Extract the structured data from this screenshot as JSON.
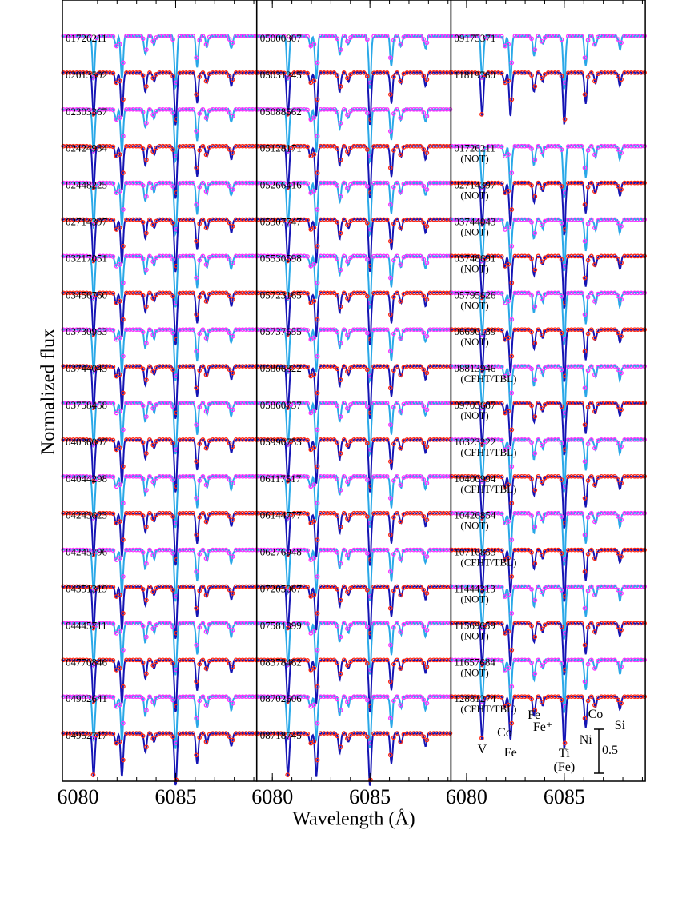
{
  "chart_data": {
    "type": "spectra",
    "xlabel": "Wavelength (Å)",
    "ylabel": "Normalized flux",
    "xlim": [
      6079.2,
      6089.15
    ],
    "xticks": [
      6080,
      6085
    ],
    "xminorticks": [
      6080,
      6081,
      6082,
      6083,
      6084,
      6085,
      6086,
      6087,
      6088,
      6089
    ],
    "colors": [
      [
        "#29a8e8",
        "#ff33ff"
      ],
      [
        "#1414b4",
        "#ff2a14"
      ]
    ],
    "scale_bar": 0.5,
    "lines": [
      {
        "label": "V",
        "wavelength": 6080.8,
        "depth": 0.5
      },
      {
        "label": "Co",
        "wavelength": 6081.95,
        "depth": 0.12
      },
      {
        "label": "Fe",
        "wavelength": 6082.25,
        "depth": 0.5
      },
      {
        "label": "Fe",
        "wavelength": 6083.45,
        "depth": 0.22
      },
      {
        "label": "Fe⁺",
        "wavelength": 6083.9,
        "depth": 0.1
      },
      {
        "label": "Ti",
        "note": "(Fe)",
        "wavelength": 6085.0,
        "depth": 0.6
      },
      {
        "label": "Ni",
        "wavelength": 6086.1,
        "depth": 0.35
      },
      {
        "label": "Co",
        "wavelength": 6086.6,
        "depth": 0.12
      },
      {
        "label": "Si",
        "wavelength": 6087.85,
        "depth": 0.15
      }
    ],
    "panels": [
      {
        "stars": [
          {
            "id": "01726211"
          },
          {
            "id": "02013502"
          },
          {
            "id": "02303367"
          },
          {
            "id": "02424934"
          },
          {
            "id": "02448225"
          },
          {
            "id": "02714397"
          },
          {
            "id": "03217051"
          },
          {
            "id": "03456760"
          },
          {
            "id": "03730953"
          },
          {
            "id": "03744043"
          },
          {
            "id": "03758458"
          },
          {
            "id": "04036007"
          },
          {
            "id": "04044298"
          },
          {
            "id": "04243623"
          },
          {
            "id": "04245796"
          },
          {
            "id": "04351319"
          },
          {
            "id": "04445711"
          },
          {
            "id": "04770846"
          },
          {
            "id": "04902641"
          },
          {
            "id": "04952717"
          }
        ]
      },
      {
        "stars": [
          {
            "id": "05000807"
          },
          {
            "id": "05031245"
          },
          {
            "id": "05088562"
          },
          {
            "id": "05128171"
          },
          {
            "id": "05266416"
          },
          {
            "id": "05307747"
          },
          {
            "id": "05530598"
          },
          {
            "id": "05723165"
          },
          {
            "id": "05737655"
          },
          {
            "id": "05806822"
          },
          {
            "id": "05860737"
          },
          {
            "id": "05990753"
          },
          {
            "id": "06117517"
          },
          {
            "id": "06144777"
          },
          {
            "id": "06276948"
          },
          {
            "id": "07205067"
          },
          {
            "id": "07581399"
          },
          {
            "id": "08378462"
          },
          {
            "id": "08702606"
          },
          {
            "id": "08718745"
          }
        ]
      },
      {
        "stars": [
          {
            "id": "09175371"
          },
          {
            "id": "11819760"
          },
          null,
          {
            "id": "01726211",
            "note": "(NOT)"
          },
          {
            "id": "02714397",
            "note": "(NOT)"
          },
          {
            "id": "03744043",
            "note": "(NOT)"
          },
          {
            "id": "03748691",
            "note": "(NOT)"
          },
          {
            "id": "05795626",
            "note": "(NOT)"
          },
          {
            "id": "06690139",
            "note": "(NOT)"
          },
          {
            "id": "08813946",
            "note": "(CFHT/TBL)"
          },
          {
            "id": "09705687",
            "note": "(NOT)"
          },
          {
            "id": "10323222",
            "note": "(CFHT/TBL)"
          },
          {
            "id": "10400994",
            "note": "(CFHT/TBL)"
          },
          {
            "id": "10426854",
            "note": "(NOT)"
          },
          {
            "id": "10716853",
            "note": "(CFHT/TBL)"
          },
          {
            "id": "11444313",
            "note": "(NOT)"
          },
          {
            "id": "11569659",
            "note": "(NOT)"
          },
          {
            "id": "11657684",
            "note": "(NOT)"
          },
          {
            "id": "12881274",
            "note": "(CFHT/TBL)"
          }
        ]
      }
    ]
  }
}
